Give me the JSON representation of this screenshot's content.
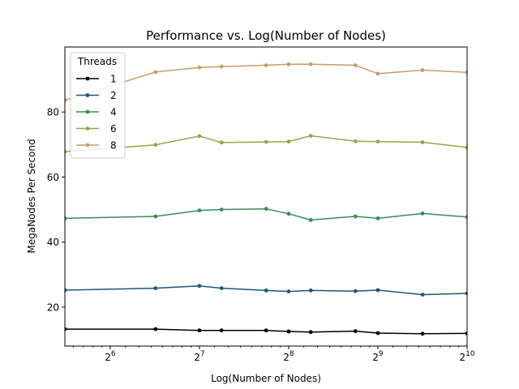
{
  "chart_data": {
    "type": "line",
    "title": "Performance vs. Log(Number of Nodes)",
    "xlabel": "Log(Number of Nodes)",
    "ylabel": "MegaNodes Per Second",
    "x_scale": "log2",
    "xlim": [
      45,
      1024
    ],
    "ylim": [
      8,
      100
    ],
    "x_ticks": [
      {
        "value": 64,
        "base": "2",
        "exp": "6"
      },
      {
        "value": 128,
        "base": "2",
        "exp": "7"
      },
      {
        "value": 256,
        "base": "2",
        "exp": "8"
      },
      {
        "value": 512,
        "base": "2",
        "exp": "9"
      },
      {
        "value": 1024,
        "base": "2",
        "exp": "10"
      }
    ],
    "y_ticks": [
      20,
      40,
      60,
      80
    ],
    "grid": false,
    "legend": {
      "title": "Threads",
      "position": "top-left"
    },
    "x": [
      45,
      91,
      128,
      152,
      215,
      256,
      304,
      430,
      512,
      724,
      1024
    ],
    "series": [
      {
        "name": "1",
        "color": "#000000",
        "values": [
          13.2,
          13.2,
          12.8,
          12.8,
          12.8,
          12.5,
          12.3,
          12.6,
          12.0,
          11.8,
          11.9
        ]
      },
      {
        "name": "2",
        "color": "#1b5875",
        "values": [
          25.2,
          25.8,
          26.5,
          25.8,
          25.1,
          24.8,
          25.1,
          24.9,
          25.2,
          23.8,
          24.2
        ]
      },
      {
        "name": "4",
        "color": "#3a8c55",
        "values": [
          47.3,
          47.9,
          49.7,
          50.0,
          50.2,
          48.7,
          46.8,
          47.9,
          47.3,
          48.8,
          47.7
        ]
      },
      {
        "name": "6",
        "color": "#8fa84e",
        "values": [
          67.8,
          69.9,
          72.6,
          70.6,
          70.8,
          70.9,
          72.7,
          71.0,
          70.9,
          70.7,
          69.1
        ]
      },
      {
        "name": "8",
        "color": "#c2a068",
        "values": [
          83.6,
          92.3,
          93.7,
          94.0,
          94.4,
          94.7,
          94.7,
          94.4,
          91.8,
          92.9,
          92.2
        ]
      }
    ]
  }
}
